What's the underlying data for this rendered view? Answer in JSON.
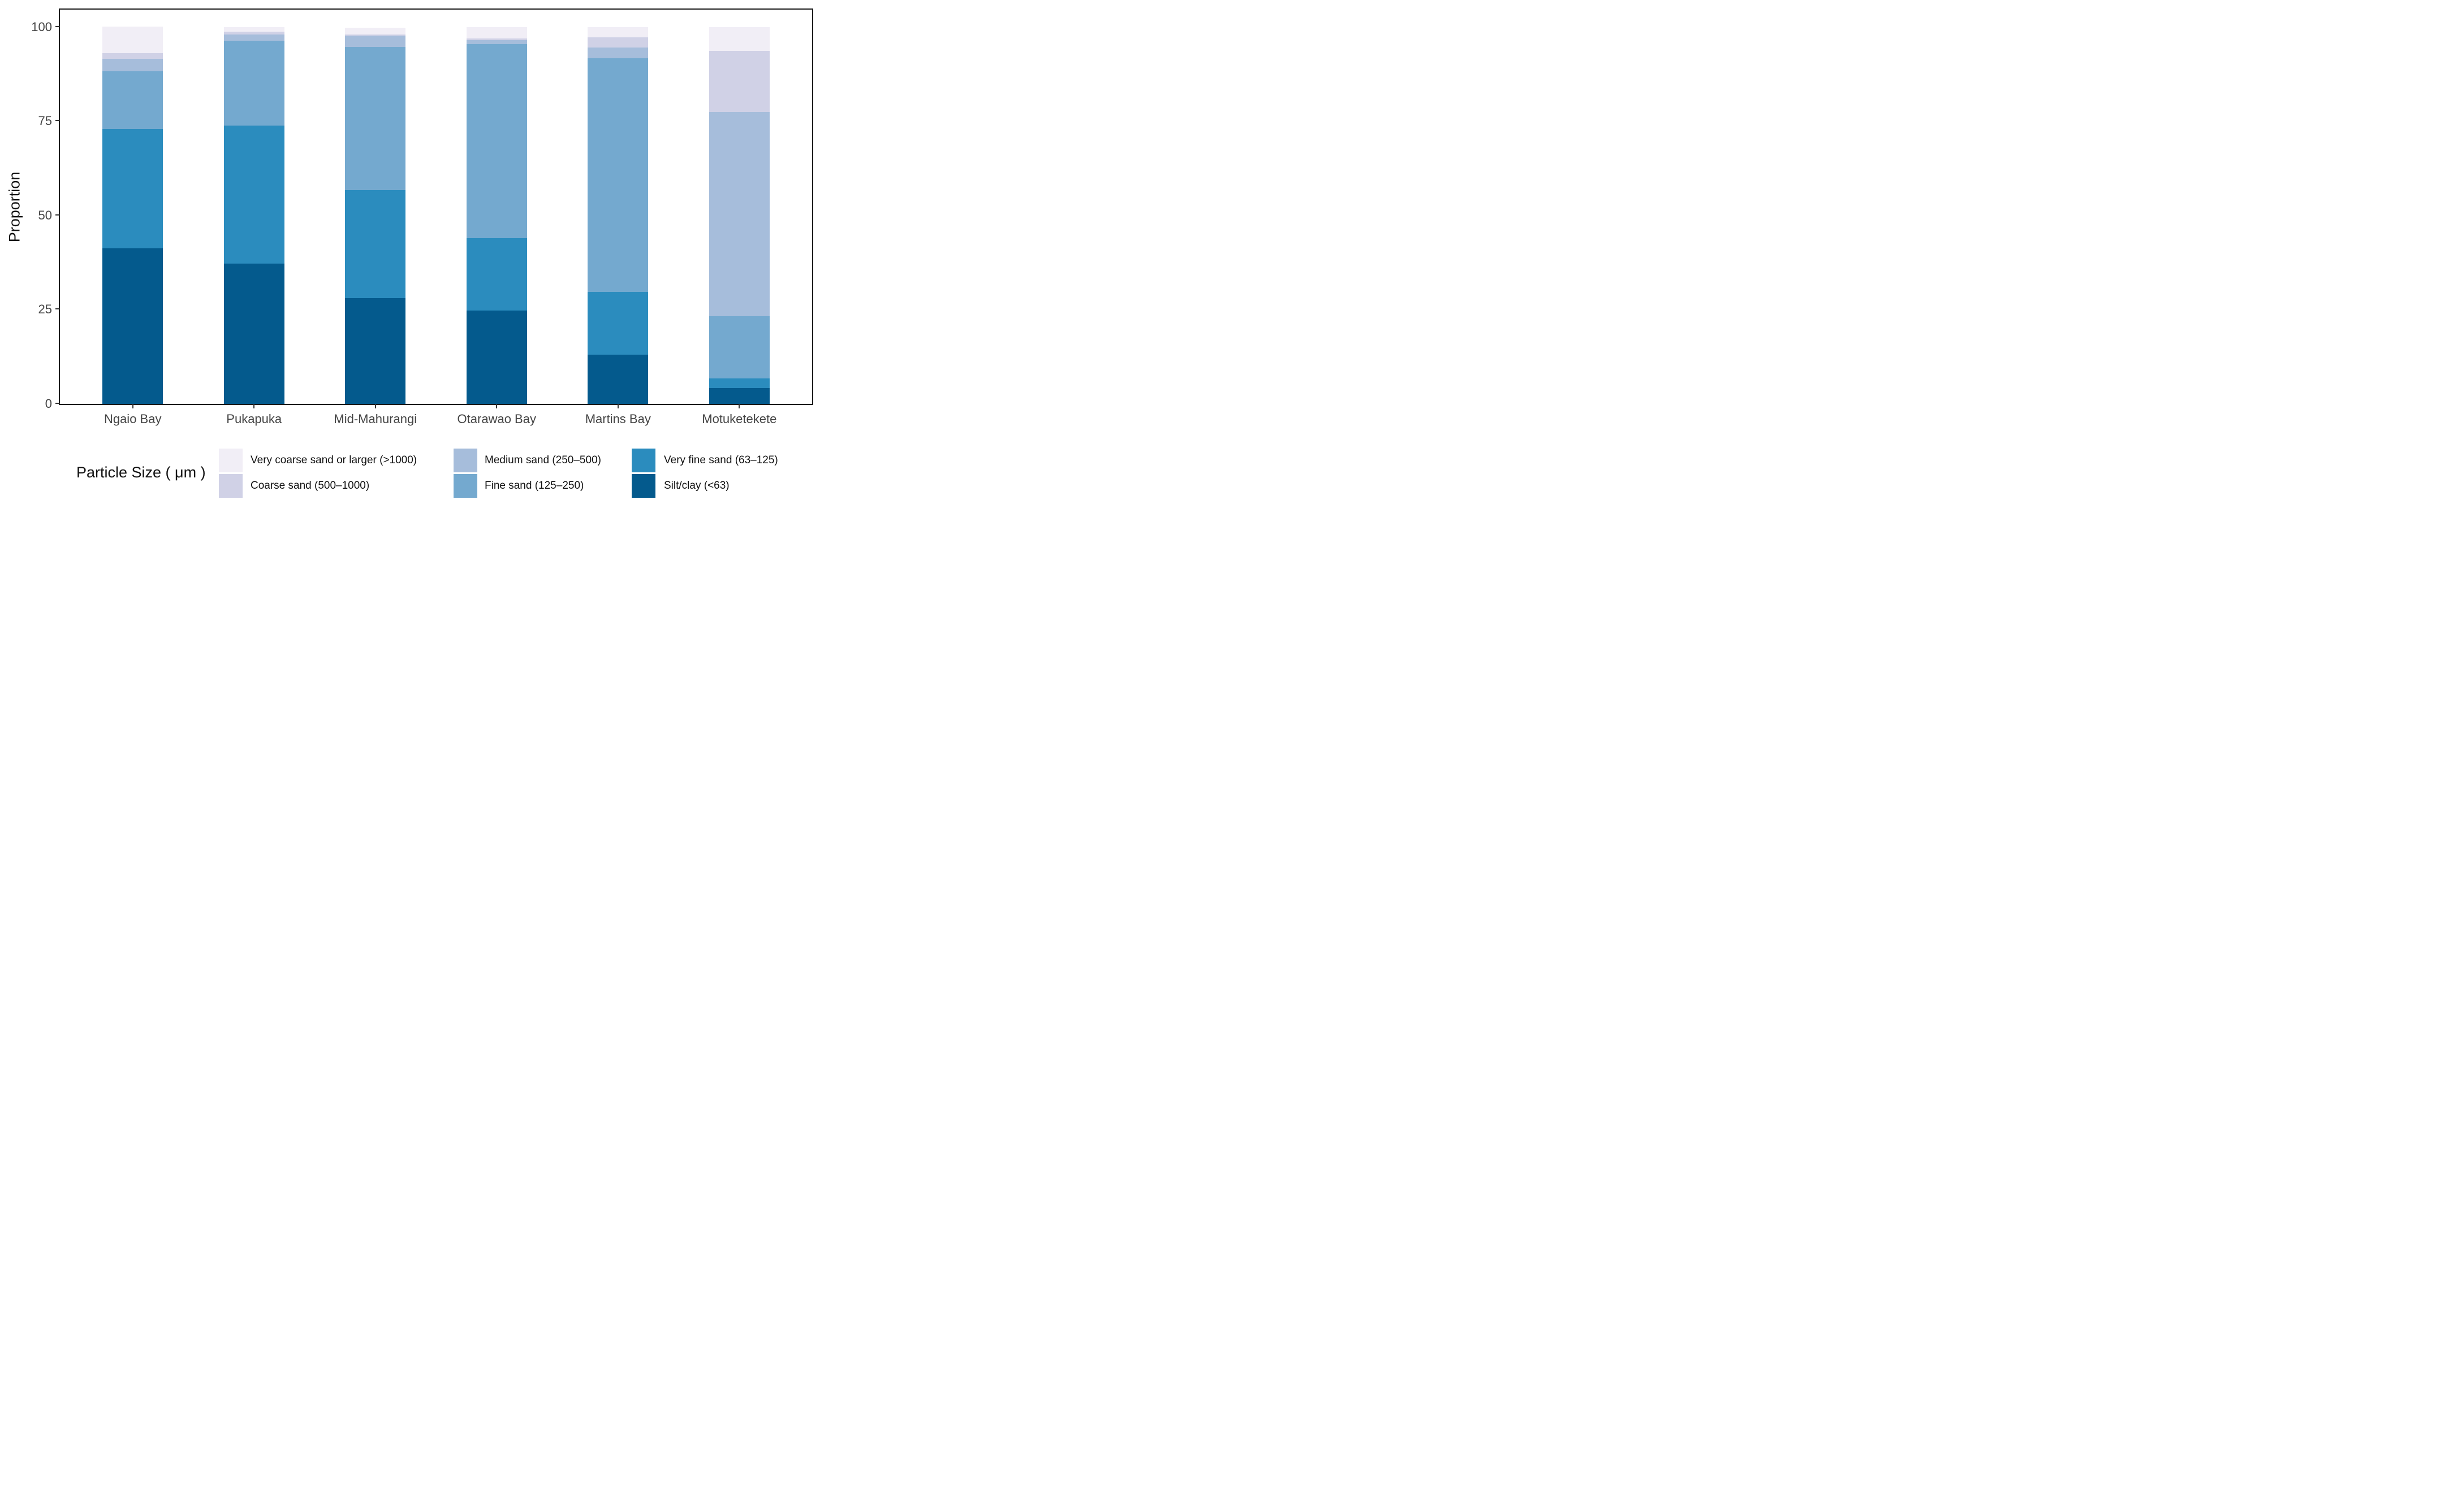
{
  "y_axis": {
    "title": "Proportion",
    "ticks": [
      0,
      25,
      50,
      75,
      100
    ]
  },
  "legend": {
    "title": "Particle Size ( μm )",
    "position": "bottom"
  },
  "chart_data": {
    "type": "bar",
    "stacked": true,
    "stack_order_bottom_to_top": [
      "Silt/clay (<63)",
      "Very fine sand (63–125)",
      "Fine sand (125–250)",
      "Medium sand (250–500)",
      "Coarse sand (500–1000)",
      "Very coarse sand or larger (>1000)"
    ],
    "categories": [
      "Ngaio Bay",
      "Pukapuka",
      "Mid-Mahurangi",
      "Otarawao Bay",
      "Martins Bay",
      "Motuketekete"
    ],
    "series": [
      {
        "name": "Very coarse sand or larger (>1000)",
        "color": "#f1eef6",
        "values": [
          7.0,
          1.2,
          1.8,
          3.0,
          2.7,
          6.3
        ]
      },
      {
        "name": "Coarse sand (500–1000)",
        "color": "#d0d1e6",
        "values": [
          1.6,
          0.7,
          0.3,
          0.5,
          2.6,
          16.3
        ]
      },
      {
        "name": "Medium sand (250–500)",
        "color": "#a6bddb",
        "values": [
          3.3,
          1.6,
          3.0,
          1.0,
          2.9,
          54.1
        ]
      },
      {
        "name": "Fine sand (125–250)",
        "color": "#74a9cf",
        "values": [
          15.2,
          22.5,
          38.0,
          51.6,
          62.0,
          16.6
        ]
      },
      {
        "name": "Very fine sand (63–125)",
        "color": "#2b8cbe",
        "values": [
          31.8,
          36.7,
          28.6,
          19.2,
          16.7,
          2.5
        ]
      },
      {
        "name": "Silt/clay (<63)",
        "color": "#045a8d",
        "values": [
          41.2,
          37.2,
          28.1,
          24.7,
          13.0,
          4.2
        ]
      }
    ],
    "title": "",
    "xlabel": "",
    "ylabel": "Proportion",
    "ylim": [
      0,
      100
    ],
    "yticks": [
      0,
      25,
      50,
      75,
      100
    ],
    "legend_title": "Particle Size ( μm )",
    "legend_position": "bottom",
    "grid": false
  }
}
